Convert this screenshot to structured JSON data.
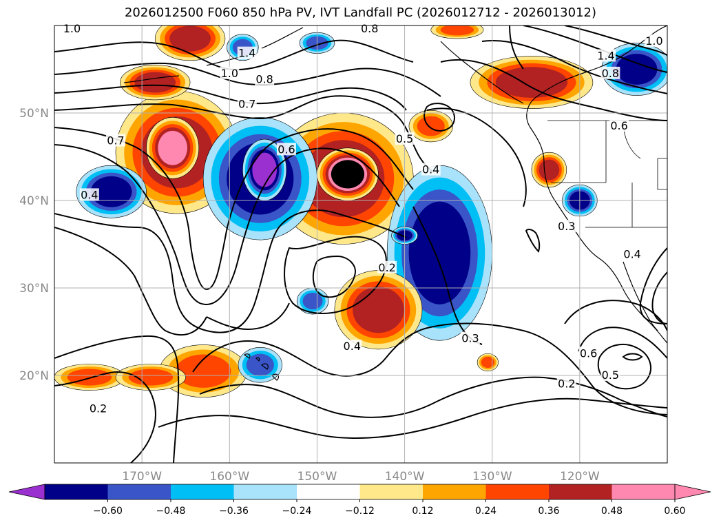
{
  "title": "2026012500 F060 850 hPa PV, IVT Landfall PC (2026012712 - 2026013012)",
  "map": {
    "lon_range": [
      -180,
      -110
    ],
    "lat_range": [
      10,
      60
    ],
    "lon_ticks": [
      {
        "lon": -170,
        "label": "170°W"
      },
      {
        "lon": -160,
        "label": "160°W"
      },
      {
        "lon": -150,
        "label": "150°W"
      },
      {
        "lon": -140,
        "label": "140°W"
      },
      {
        "lon": -130,
        "label": "130°W"
      },
      {
        "lon": -120,
        "label": "120°W"
      }
    ],
    "lat_ticks": [
      {
        "lat": 20,
        "label": "20°N"
      },
      {
        "lat": 30,
        "label": "30°N"
      },
      {
        "lat": 40,
        "label": "40°N"
      },
      {
        "lat": 50,
        "label": "50°N"
      }
    ],
    "grid": true,
    "contour_labels": [
      {
        "text": "1.0",
        "lon": -178,
        "lat": 59.6
      },
      {
        "text": "1.4",
        "lon": -158,
        "lat": 56.8
      },
      {
        "text": "1.0",
        "lon": -160,
        "lat": 54.5
      },
      {
        "text": "0.8",
        "lon": -156,
        "lat": 53.8
      },
      {
        "text": "0.8",
        "lon": -144,
        "lat": 59.6
      },
      {
        "text": "0.7",
        "lon": -158,
        "lat": 51.0
      },
      {
        "text": "0.7",
        "lon": -173,
        "lat": 46.8
      },
      {
        "text": "0.6",
        "lon": -153.5,
        "lat": 45.8
      },
      {
        "text": "0.5",
        "lon": -140,
        "lat": 47.0
      },
      {
        "text": "0.4",
        "lon": -137,
        "lat": 43.5
      },
      {
        "text": "0.4",
        "lon": -176,
        "lat": 40.6
      },
      {
        "text": "0.2",
        "lon": -142,
        "lat": 32.3
      },
      {
        "text": "0.4",
        "lon": -146,
        "lat": 23.3
      },
      {
        "text": "0.3",
        "lon": -132.5,
        "lat": 24.2
      },
      {
        "text": "0.2",
        "lon": -175,
        "lat": 16.2
      },
      {
        "text": "0.2",
        "lon": -121.5,
        "lat": 19.0
      },
      {
        "text": "0.5",
        "lon": -116.5,
        "lat": 20.0
      },
      {
        "text": "0.6",
        "lon": -119,
        "lat": 22.5
      },
      {
        "text": "0.3",
        "lon": -121.5,
        "lat": 37.0
      },
      {
        "text": "0.4",
        "lon": -114,
        "lat": 33.8
      },
      {
        "text": "1.4",
        "lon": -117,
        "lat": 56.5
      },
      {
        "text": "0.8",
        "lon": -116.5,
        "lat": 54.5
      },
      {
        "text": "0.6",
        "lon": -115.5,
        "lat": 48.5
      },
      {
        "text": "1.0",
        "lon": -111.5,
        "lat": 58.2
      }
    ],
    "colors": {
      "-0.66": "#9b30d0",
      "-0.54": "#000088",
      "-0.42": "#3a55c8",
      "-0.30": "#00bff5",
      "-0.18": "#a8e2fb",
      "0.18": "#ffe88a",
      "0.30": "#ffa500",
      "0.42": "#ff4500",
      "0.54": "#b22222",
      "0.66": "#ff88b0"
    },
    "filled_regions": [
      {
        "lon": -166,
        "lat": 45.5,
        "rx": 7,
        "ry": 7,
        "level": 4
      },
      {
        "lon": -166.5,
        "lat": 46,
        "rx": 3,
        "ry": 3.5,
        "level": 5
      },
      {
        "lon": -147,
        "lat": 42.5,
        "rx": 8,
        "ry": 7.5,
        "level": 4
      },
      {
        "lon": -146.5,
        "lat": 43,
        "rx": 3.5,
        "ry": 3,
        "level": 6
      },
      {
        "lon": -156.5,
        "lat": 42.5,
        "rx": 6.5,
        "ry": 7,
        "level": -4
      },
      {
        "lon": -156,
        "lat": 43.5,
        "rx": 2.5,
        "ry": 3.5,
        "level": -5
      },
      {
        "lon": -173.5,
        "lat": 41,
        "rx": 4,
        "ry": 3,
        "level": -4
      },
      {
        "lon": -136,
        "lat": 34,
        "rx": 6,
        "ry": 10,
        "level": -4
      },
      {
        "lon": -143,
        "lat": 27.5,
        "rx": 5,
        "ry": 4.5,
        "level": 4
      },
      {
        "lon": -168.5,
        "lat": 53.5,
        "rx": 4,
        "ry": 2,
        "level": 4
      },
      {
        "lon": -123.5,
        "lat": 43.5,
        "rx": 2,
        "ry": 2,
        "level": 4
      },
      {
        "lon": -125.5,
        "lat": 53.5,
        "rx": 7,
        "ry": 3,
        "level": 4
      },
      {
        "lon": -113.5,
        "lat": 55,
        "rx": 4,
        "ry": 3,
        "level": -4
      },
      {
        "lon": -137,
        "lat": 48.5,
        "rx": 2.5,
        "ry": 1.8,
        "level": 3
      },
      {
        "lon": -163,
        "lat": 20.5,
        "rx": 5,
        "ry": 3,
        "level": 3
      },
      {
        "lon": -176,
        "lat": 19.8,
        "rx": 4,
        "ry": 1.5,
        "level": 3
      },
      {
        "lon": -169,
        "lat": 19.8,
        "rx": 4,
        "ry": 1.5,
        "level": 3
      },
      {
        "lon": -156.5,
        "lat": 21.2,
        "rx": 2.5,
        "ry": 2,
        "level": -3
      },
      {
        "lon": -150.5,
        "lat": 28.5,
        "rx": 1.8,
        "ry": 1.5,
        "level": -3
      },
      {
        "lon": -120,
        "lat": 40,
        "rx": 2,
        "ry": 1.8,
        "level": -4
      },
      {
        "lon": -130.5,
        "lat": 21.5,
        "rx": 1.2,
        "ry": 1,
        "level": 3
      },
      {
        "lon": -140,
        "lat": 36,
        "rx": 1.5,
        "ry": 1,
        "level": -4
      },
      {
        "lon": -164.5,
        "lat": 58.5,
        "rx": 4,
        "ry": 2.5,
        "level": 4
      },
      {
        "lon": -158.5,
        "lat": 57.5,
        "rx": 1.8,
        "ry": 1.5,
        "level": -3
      },
      {
        "lon": -150,
        "lat": 58,
        "rx": 2,
        "ry": 1.2,
        "level": -3
      },
      {
        "lon": -134,
        "lat": 59.5,
        "rx": 3,
        "ry": 1,
        "level": 3
      }
    ]
  },
  "colorbar": {
    "ticks": [
      "−0.60",
      "−0.48",
      "−0.36",
      "−0.24",
      "−0.12",
      "0.12",
      "0.24",
      "0.36",
      "0.48",
      "0.60"
    ],
    "segments": [
      "#9b30d0",
      "#000088",
      "#3a55c8",
      "#00bff5",
      "#a8e2fb",
      "#ffffff",
      "#ffe88a",
      "#ffa500",
      "#ff4500",
      "#b22222",
      "#ff88b0",
      "#ff88b0"
    ]
  }
}
